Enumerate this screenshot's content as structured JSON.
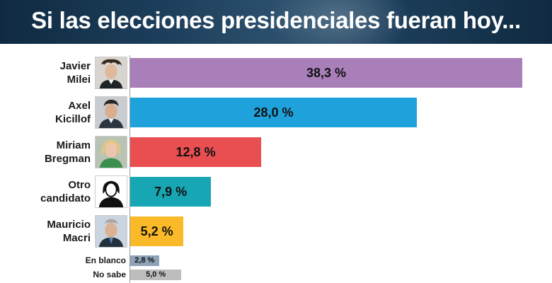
{
  "header": {
    "title": "Si las elecciones presidenciales fueran hoy..."
  },
  "chart_data": {
    "type": "bar",
    "orientation": "horizontal",
    "title": "Si las elecciones presidenciales fueran hoy...",
    "xlabel": "",
    "ylabel": "",
    "xlim": [
      0,
      38.3
    ],
    "grid": false,
    "categories": [
      "Javier\nMilei",
      "Axel\nKicillof",
      "Miriam\nBregman",
      "Otro\ncandidato",
      "Mauricio\nMacri",
      "En blanco",
      "No sabe"
    ],
    "values": [
      38.3,
      28.0,
      12.8,
      7.9,
      5.2,
      2.8,
      5.0
    ],
    "value_labels": [
      "38,3 %",
      "28,0 %",
      "12,8 %",
      "7,9 %",
      "5,2 %",
      "2,8 %",
      "5,0 %"
    ],
    "colors": [
      "#a97fba",
      "#1fa1dc",
      "#e94e50",
      "#17a6b4",
      "#f9b928",
      "#8fa3b8",
      "#bdbdbd"
    ],
    "icons": [
      "photo-javier-milei",
      "photo-axel-kicillof",
      "photo-miriam-bregman",
      "person-silhouette-icon",
      "photo-mauricio-macri",
      "",
      ""
    ]
  }
}
